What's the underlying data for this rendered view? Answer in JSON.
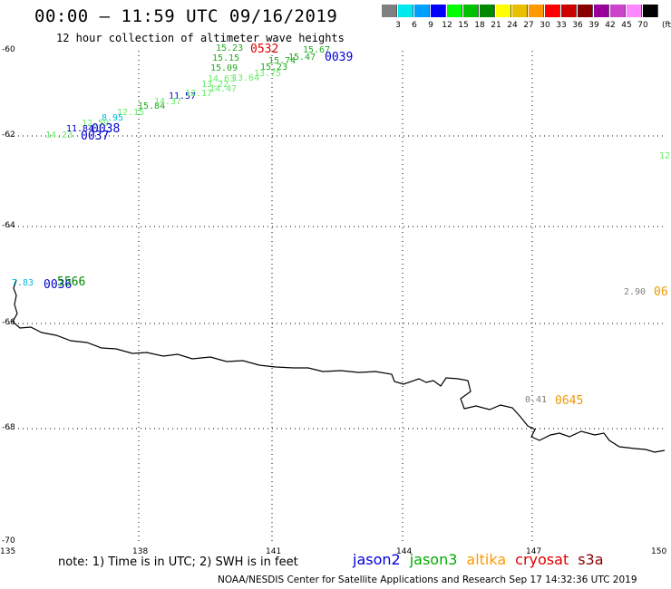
{
  "header": {
    "title": "00:00 — 11:59 UTC 09/16/2019",
    "subtitle": "12 hour collection of altimeter wave heights"
  },
  "colorbar": {
    "unit": "(ft)",
    "bins": [
      {
        "label": "3",
        "color": "#808080"
      },
      {
        "label": "6",
        "color": "#00e8f0"
      },
      {
        "label": "9",
        "color": "#00a0ff"
      },
      {
        "label": "12",
        "color": "#0000ff"
      },
      {
        "label": "15",
        "color": "#00ff00"
      },
      {
        "label": "18",
        "color": "#00c000"
      },
      {
        "label": "21",
        "color": "#008800"
      },
      {
        "label": "24",
        "color": "#ffff00"
      },
      {
        "label": "27",
        "color": "#e8c000"
      },
      {
        "label": "30",
        "color": "#ff9900"
      },
      {
        "label": "33",
        "color": "#ff0000"
      },
      {
        "label": "36",
        "color": "#cc0000"
      },
      {
        "label": "39",
        "color": "#880000"
      },
      {
        "label": "42",
        "color": "#990099"
      },
      {
        "label": "45",
        "color": "#cc44cc"
      },
      {
        "label": "70",
        "color": "#ff88ff"
      },
      {
        "label": "",
        "color": "#000000"
      }
    ]
  },
  "map": {
    "latitude_labels": [
      "-60",
      "-62",
      "-64",
      "-66",
      "-68",
      "-70"
    ],
    "longitude_labels": [
      "135",
      "138",
      "141",
      "144",
      "147",
      "150"
    ]
  },
  "observations": [
    {
      "text": "15.23",
      "color": "#22aa22",
      "kind": "swh"
    },
    {
      "text": "0532",
      "color": "#dd0000",
      "kind": "time"
    },
    {
      "text": "15.67",
      "color": "#22aa22",
      "kind": "swh"
    },
    {
      "text": "15.47",
      "color": "#22aa22",
      "kind": "swh"
    },
    {
      "text": "15.15",
      "color": "#22aa22",
      "kind": "swh"
    },
    {
      "text": "15.74",
      "color": "#22aa22",
      "kind": "swh"
    },
    {
      "text": "0039",
      "color": "#0000cc",
      "kind": "time"
    },
    {
      "text": "15.09",
      "color": "#22aa22",
      "kind": "swh"
    },
    {
      "text": "15.23",
      "color": "#22aa22",
      "kind": "swh"
    },
    {
      "text": "13.75",
      "color": "#66ee66",
      "kind": "swh"
    },
    {
      "text": "14.63",
      "color": "#66ee66",
      "kind": "swh"
    },
    {
      "text": "13.64",
      "color": "#66ee66",
      "kind": "swh"
    },
    {
      "text": "13.22",
      "color": "#66ee66",
      "kind": "swh"
    },
    {
      "text": "14.47",
      "color": "#66ee66",
      "kind": "swh"
    },
    {
      "text": "11.57",
      "color": "#0000cc",
      "kind": "swh"
    },
    {
      "text": "12.17",
      "color": "#66ee66",
      "kind": "swh"
    },
    {
      "text": "15.84",
      "color": "#22aa22",
      "kind": "swh"
    },
    {
      "text": "14.37",
      "color": "#66ee66",
      "kind": "swh"
    },
    {
      "text": "12.15",
      "color": "#66ee66",
      "kind": "swh"
    },
    {
      "text": "8.95",
      "color": "#00bbdd",
      "kind": "swh"
    },
    {
      "text": "12.59",
      "color": "#66ee66",
      "kind": "swh"
    },
    {
      "text": "11.84",
      "color": "#0000cc",
      "kind": "swh"
    },
    {
      "text": "0038",
      "color": "#0000cc",
      "kind": "time"
    },
    {
      "text": "14.23",
      "color": "#66ee66",
      "kind": "swh"
    },
    {
      "text": "0037",
      "color": "#0000cc",
      "kind": "time"
    },
    {
      "text": "12",
      "color": "#66ee66",
      "kind": "swh"
    },
    {
      "text": "7.83",
      "color": "#00bbdd",
      "kind": "swh"
    },
    {
      "text": "0036",
      "color": "#0000cc",
      "kind": "time"
    },
    {
      "text": "5566",
      "color": "#008800",
      "kind": "time"
    },
    {
      "text": "2.90",
      "color": "#808080",
      "kind": "swh"
    },
    {
      "text": "06",
      "color": "#ee9900",
      "kind": "time"
    },
    {
      "text": "0.41",
      "color": "#808080",
      "kind": "swh"
    },
    {
      "text": "0645",
      "color": "#ee9900",
      "kind": "time"
    }
  ],
  "footer": {
    "note": "note: 1) Time is in UTC; 2) SWH is in feet",
    "legend": [
      {
        "name": "jason2",
        "color": "#0000dd"
      },
      {
        "name": "jason3",
        "color": "#00aa00"
      },
      {
        "name": "altika",
        "color": "#ff9900"
      },
      {
        "name": "cryosat",
        "color": "#dd0000"
      },
      {
        "name": "s3a",
        "color": "#880000"
      }
    ],
    "credit": "NOAA/NESDIS Center for Satellite Applications and Research    Sep 17 14:32:36 UTC 2019"
  }
}
